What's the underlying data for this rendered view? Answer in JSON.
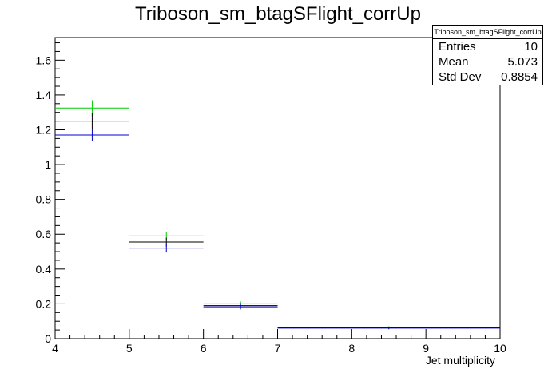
{
  "title": "Triboson_sm_btagSFlight_corrUp",
  "stats": {
    "title": "Triboson_sm_btagSFlight_corrUp",
    "rows": [
      {
        "label": "Entries",
        "value": "10"
      },
      {
        "label": "Mean",
        "value": "5.073"
      },
      {
        "label": "Std Dev",
        "value": "0.8854"
      }
    ]
  },
  "chart_data": {
    "type": "histogram",
    "xlabel": "Jet multiplicity",
    "ylabel": "",
    "xlim": [
      4,
      10
    ],
    "ylim": [
      0,
      1.73
    ],
    "x_ticks": [
      4,
      5,
      6,
      7,
      8,
      9,
      10
    ],
    "y_ticks": [
      0,
      0.2,
      0.4,
      0.6,
      0.8,
      1,
      1.2,
      1.4,
      1.6
    ],
    "bins": [
      [
        4,
        5
      ],
      [
        5,
        6
      ],
      [
        6,
        7
      ],
      [
        7,
        10
      ]
    ],
    "series": [
      {
        "color": "#00cc00",
        "values": [
          1.325,
          0.59,
          0.2,
          0.065
        ],
        "errors": [
          0.045,
          0.025,
          0.015,
          0.006
        ]
      },
      {
        "color": "#000000",
        "values": [
          1.25,
          0.555,
          0.19,
          0.063
        ],
        "errors": [
          0.045,
          0.025,
          0.015,
          0.006
        ]
      },
      {
        "color": "#0000cc",
        "values": [
          1.17,
          0.52,
          0.183,
          0.06
        ],
        "errors": [
          0.035,
          0.025,
          0.015,
          0.006
        ]
      }
    ]
  }
}
